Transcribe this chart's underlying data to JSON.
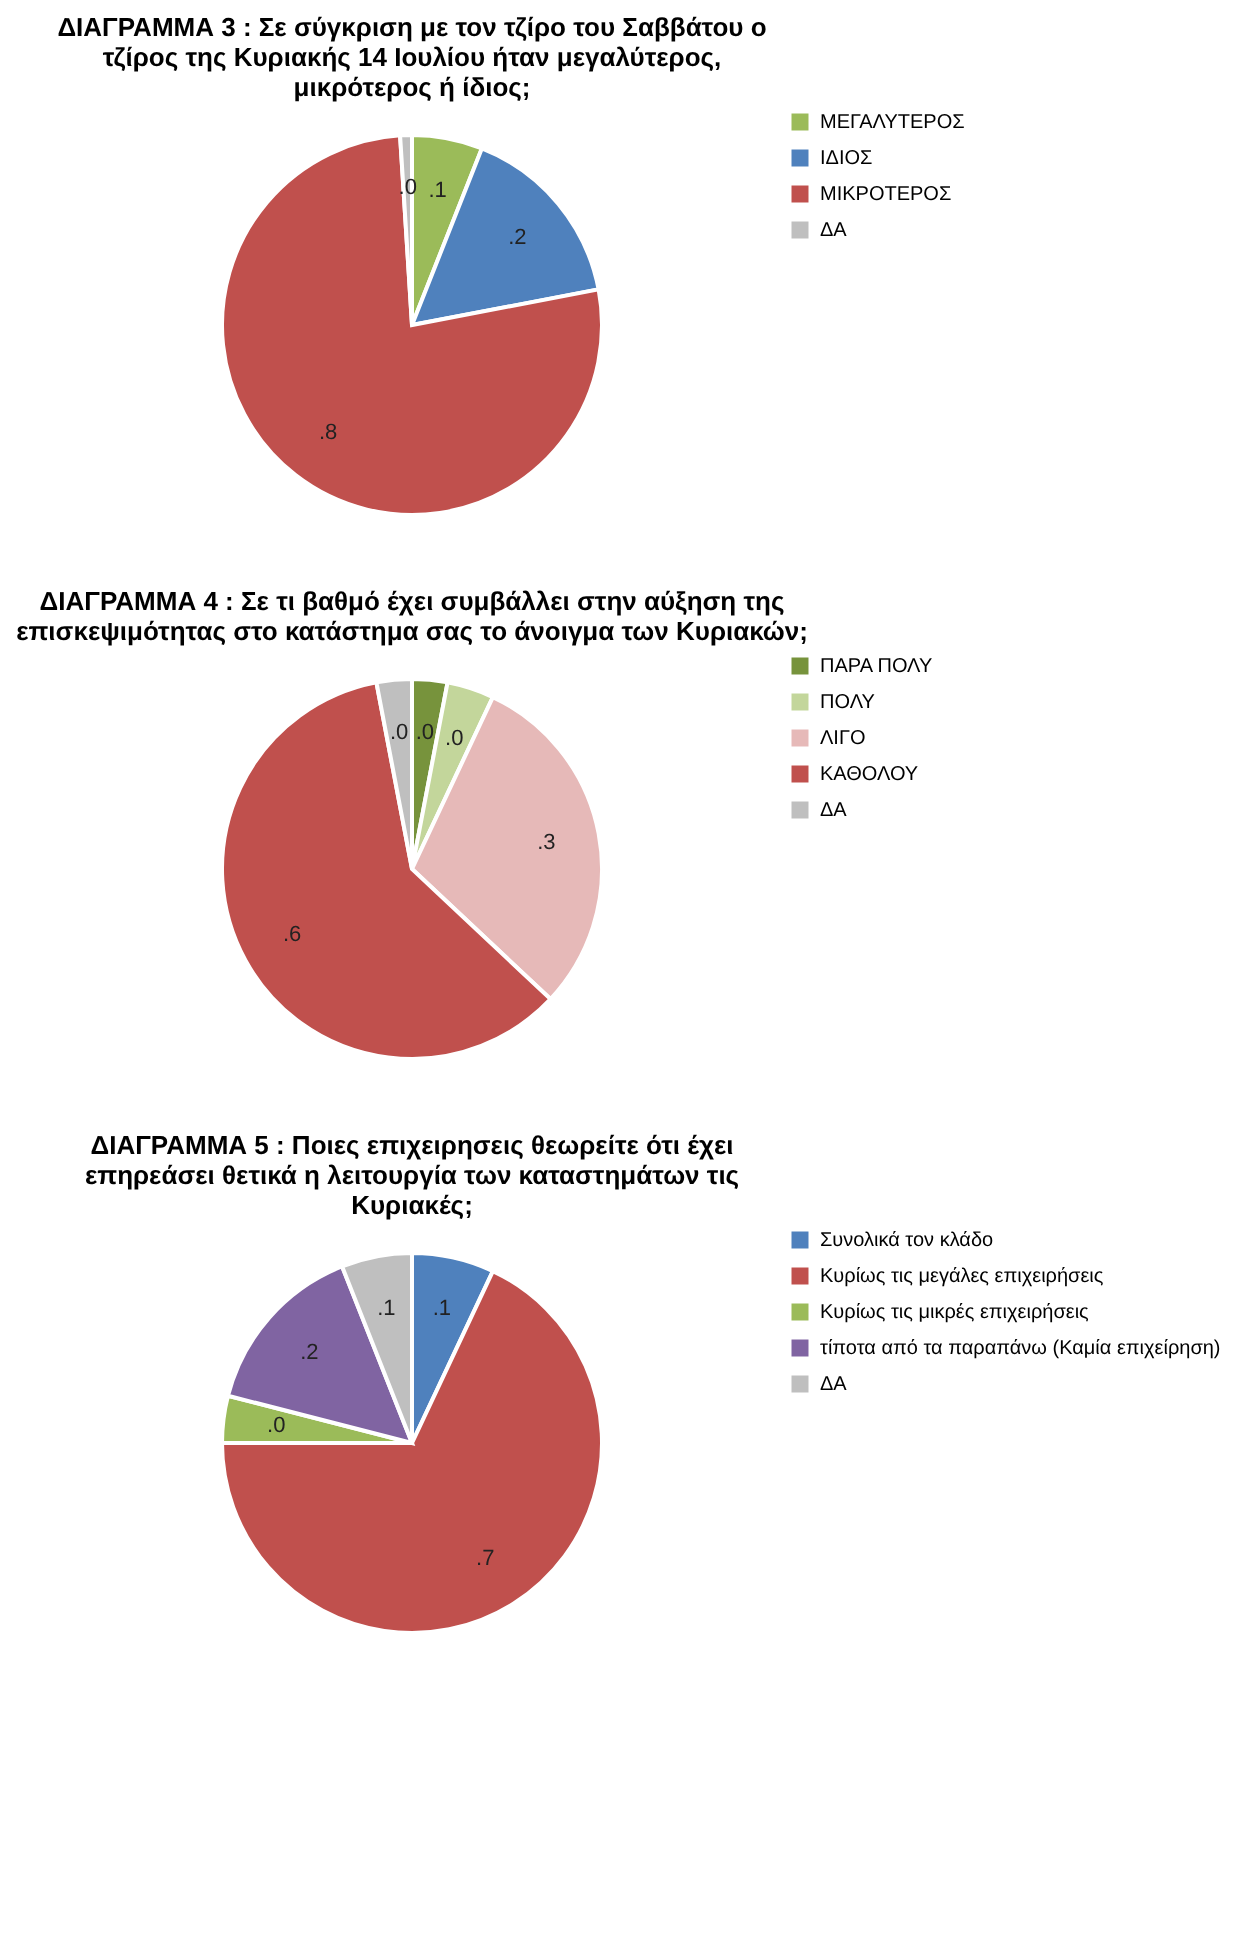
{
  "chart_data": [
    {
      "type": "pie",
      "title": "ΔΙΑΓΡΑΜΜΑ 3 : Σε σύγκριση με τον τζίρο του Σαββάτου ο τζίρος της Κυριακής 14 Ιουλίου ήταν μεγαλύτερος, μικρότερος ή ίδιος;",
      "categories": [
        "ΜΕΓΑΛΥΤΕΡΟΣ",
        "ΙΔΙΟΣ",
        "ΜΙΚΡΟΤΕΡΟΣ",
        "ΔΑ"
      ],
      "values": [
        0.06,
        0.16,
        0.77,
        0.01
      ],
      "value_labels": [
        ".1",
        ".2",
        ".8",
        ".0"
      ],
      "colors": [
        "#9bbb59",
        "#4f81bd",
        "#c0504d",
        "#bfbfbf"
      ],
      "legend": "right"
    },
    {
      "type": "pie",
      "title": "ΔΙΑΓΡΑΜΜΑ 4 : Σε τι βαθμό έχει συμβάλλει στην αύξηση της επισκεψιμότητας στο κατάστημα σας το άνοιγμα των Κυριακών;",
      "categories": [
        "ΠΑΡΑ ΠΟΛΥ",
        "ΠΟΛΥ",
        "ΛΙΓΟ",
        "ΚΑΘΟΛΟΥ",
        "ΔΑ"
      ],
      "values": [
        0.03,
        0.04,
        0.3,
        0.6,
        0.03
      ],
      "value_labels": [
        ".0",
        ".0",
        ".3",
        ".6",
        ".0"
      ],
      "colors": [
        "#77933c",
        "#c3d69b",
        "#e6b9b8",
        "#c0504d",
        "#bfbfbf"
      ],
      "legend": "right"
    },
    {
      "type": "pie",
      "title": "ΔΙΑΓΡΑΜΜΑ 5 : Ποιες επιχειρησεις θεωρείτε ότι έχει επηρεάσει θετικά η λειτουργία των καταστημάτων τις Κυριακές;",
      "categories": [
        "Συνολικά τον κλάδο",
        "Κυρίως τις μεγάλες επιχειρήσεις",
        "Κυρίως τις μικρές επιχειρήσεις",
        "τίποτα από τα παραπάνω (Καμία επιχείρηση)",
        "ΔΑ"
      ],
      "values": [
        0.07,
        0.68,
        0.04,
        0.15,
        0.06
      ],
      "value_labels": [
        ".1",
        ".7",
        ".0",
        ".2",
        ".1"
      ],
      "colors": [
        "#4f81bd",
        "#c0504d",
        "#9bbb59",
        "#8064a2",
        "#bfbfbf"
      ],
      "legend": "right"
    }
  ]
}
